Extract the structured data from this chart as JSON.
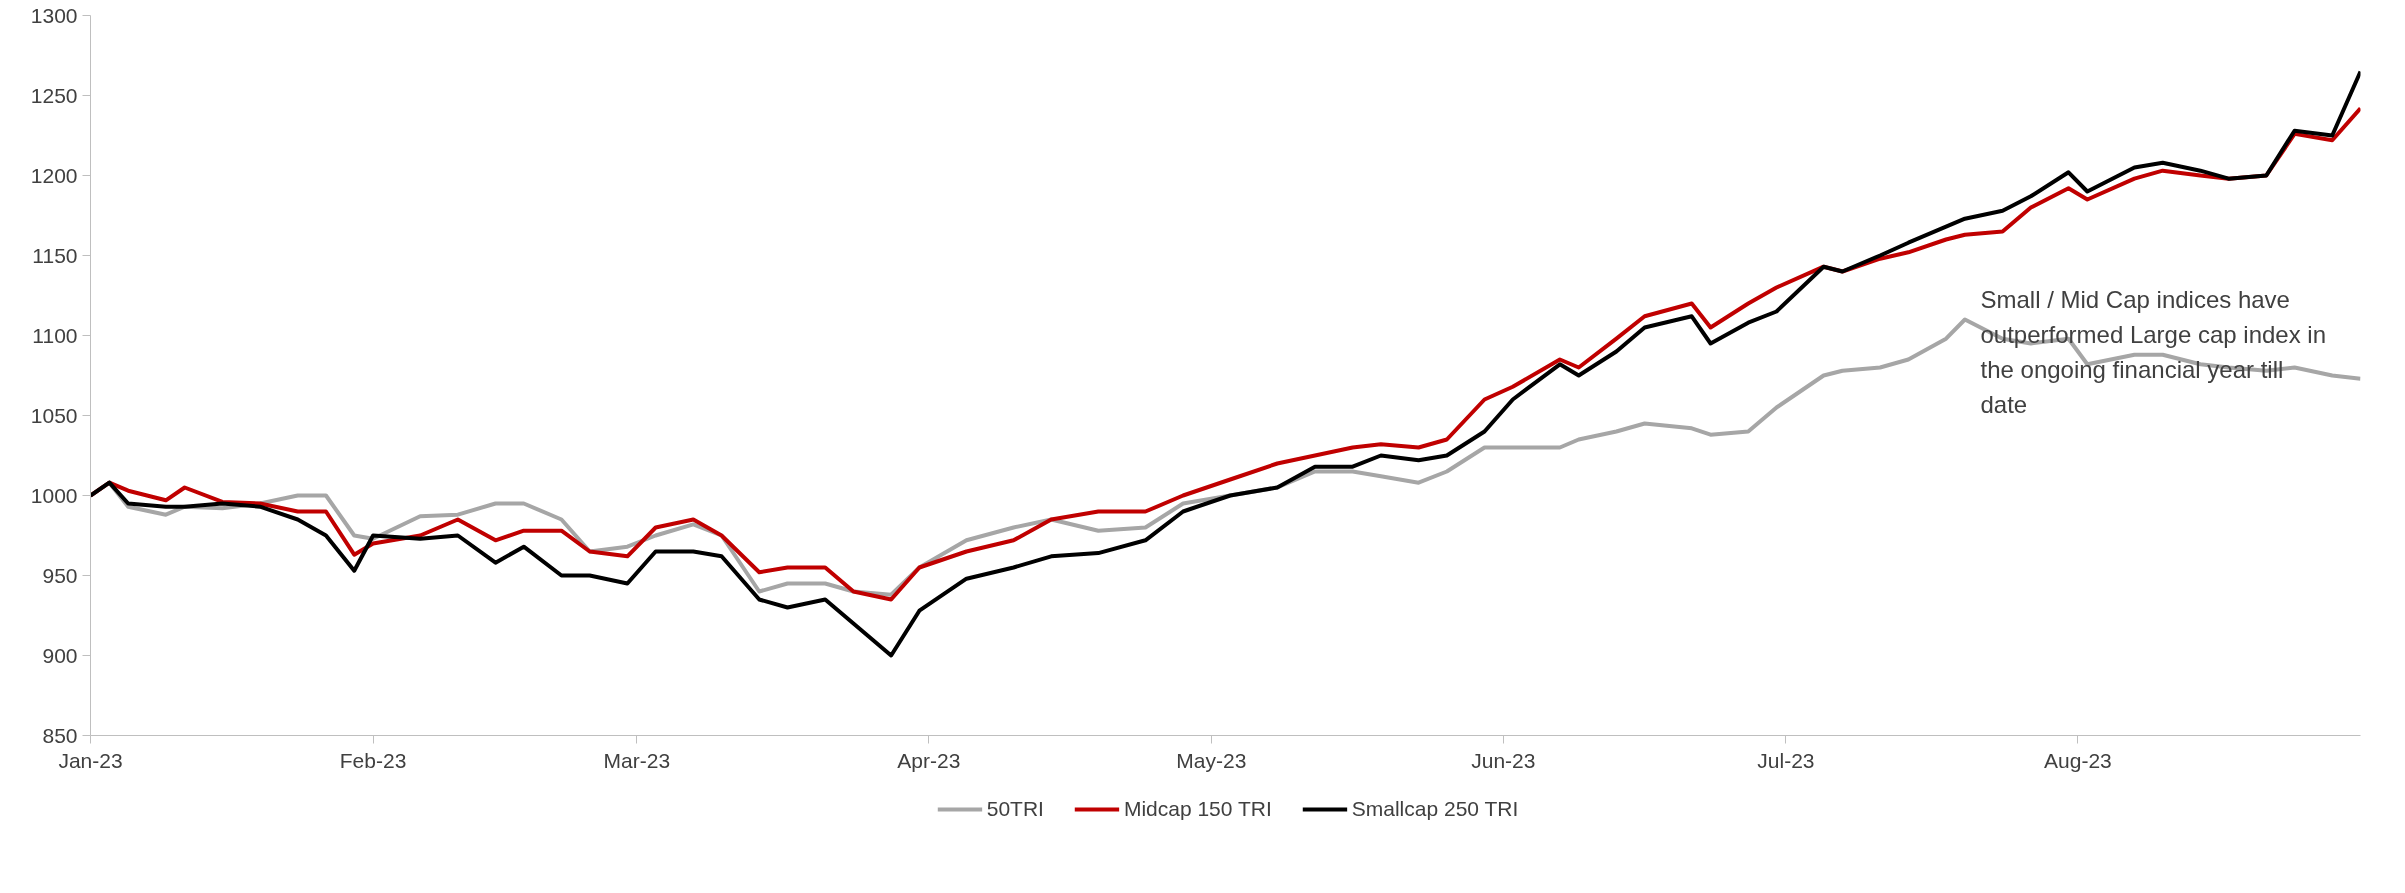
{
  "chart_data": {
    "type": "line",
    "x": [
      "2023-01-02",
      "2023-01-04",
      "2023-01-06",
      "2023-01-10",
      "2023-01-12",
      "2023-01-16",
      "2023-01-20",
      "2023-01-24",
      "2023-01-27",
      "2023-01-30",
      "2023-02-01",
      "2023-02-06",
      "2023-02-10",
      "2023-02-14",
      "2023-02-17",
      "2023-02-21",
      "2023-02-24",
      "2023-02-28",
      "2023-03-03",
      "2023-03-07",
      "2023-03-10",
      "2023-03-14",
      "2023-03-17",
      "2023-03-21",
      "2023-03-24",
      "2023-03-28",
      "2023-03-31",
      "2023-04-05",
      "2023-04-10",
      "2023-04-14",
      "2023-04-19",
      "2023-04-24",
      "2023-04-28",
      "2023-05-03",
      "2023-05-08",
      "2023-05-12",
      "2023-05-16",
      "2023-05-19",
      "2023-05-23",
      "2023-05-26",
      "2023-05-30",
      "2023-06-02",
      "2023-06-07",
      "2023-06-09",
      "2023-06-13",
      "2023-06-16",
      "2023-06-21",
      "2023-06-23",
      "2023-06-27",
      "2023-06-30",
      "2023-07-05",
      "2023-07-07",
      "2023-07-11",
      "2023-07-14",
      "2023-07-18",
      "2023-07-20",
      "2023-07-24",
      "2023-07-27",
      "2023-07-31",
      "2023-08-02",
      "2023-08-07",
      "2023-08-10",
      "2023-08-14",
      "2023-08-17",
      "2023-08-21",
      "2023-08-24",
      "2023-08-28",
      "2023-08-31"
    ],
    "series": [
      {
        "name": "50TRI",
        "color": "#a6a6a6",
        "values": [
          1000,
          1008,
          993,
          988,
          993,
          992,
          995,
          1000,
          1000,
          975,
          973,
          987,
          988,
          995,
          995,
          985,
          965,
          968,
          975,
          982,
          975,
          940,
          945,
          945,
          940,
          938,
          955,
          972,
          980,
          985,
          978,
          980,
          995,
          1000,
          1005,
          1015,
          1015,
          1012,
          1008,
          1015,
          1030,
          1030,
          1030,
          1035,
          1040,
          1045,
          1042,
          1038,
          1040,
          1055,
          1075,
          1078,
          1080,
          1085,
          1098,
          1110,
          1098,
          1095,
          1098,
          1082,
          1088,
          1088,
          1082,
          1080,
          1078,
          1080,
          1075,
          1073
        ]
      },
      {
        "name": "Midcap 150 TRI",
        "color": "#c00000",
        "values": [
          1000,
          1008,
          1003,
          997,
          1005,
          996,
          995,
          990,
          990,
          963,
          970,
          975,
          985,
          972,
          978,
          978,
          965,
          962,
          980,
          985,
          975,
          952,
          955,
          955,
          940,
          935,
          955,
          965,
          972,
          985,
          990,
          990,
          1000,
          1010,
          1020,
          1025,
          1030,
          1032,
          1030,
          1035,
          1060,
          1068,
          1085,
          1080,
          1098,
          1112,
          1120,
          1105,
          1120,
          1130,
          1143,
          1140,
          1148,
          1152,
          1160,
          1163,
          1165,
          1180,
          1192,
          1185,
          1198,
          1203,
          1200,
          1198,
          1200,
          1226,
          1222,
          1242
        ]
      },
      {
        "name": "Smallcap 250 TRI",
        "color": "#000000",
        "values": [
          1000,
          1008,
          995,
          993,
          993,
          995,
          993,
          985,
          975,
          953,
          975,
          973,
          975,
          958,
          968,
          950,
          950,
          945,
          965,
          965,
          962,
          935,
          930,
          935,
          920,
          900,
          928,
          948,
          955,
          962,
          964,
          972,
          990,
          1000,
          1005,
          1018,
          1018,
          1025,
          1022,
          1025,
          1040,
          1060,
          1082,
          1075,
          1090,
          1105,
          1112,
          1095,
          1108,
          1115,
          1143,
          1140,
          1150,
          1158,
          1168,
          1173,
          1178,
          1187,
          1202,
          1190,
          1205,
          1208,
          1203,
          1198,
          1200,
          1228,
          1225,
          1265
        ]
      }
    ],
    "xlim": [
      "2023-01-02",
      "2023-08-31"
    ],
    "xticks": [
      {
        "value": "2023-01-02",
        "label": "Jan-23"
      },
      {
        "value": "2023-02-01",
        "label": "Feb-23"
      },
      {
        "value": "2023-03-01",
        "label": "Mar-23"
      },
      {
        "value": "2023-04-01",
        "label": "Apr-23"
      },
      {
        "value": "2023-05-01",
        "label": "May-23"
      },
      {
        "value": "2023-06-01",
        "label": "Jun-23"
      },
      {
        "value": "2023-07-01",
        "label": "Jul-23"
      },
      {
        "value": "2023-08-01",
        "label": "Aug-23"
      }
    ],
    "ylim": [
      850,
      1300
    ],
    "yticks": [
      850,
      900,
      950,
      1000,
      1050,
      1100,
      1150,
      1200,
      1250,
      1300
    ],
    "annotations": [
      "Small / Mid Cap indices have outperformed Large cap index in the ongoing financial year till date"
    ],
    "grid": false,
    "legend": "bottom",
    "marker": "none",
    "line_style": "solid"
  }
}
